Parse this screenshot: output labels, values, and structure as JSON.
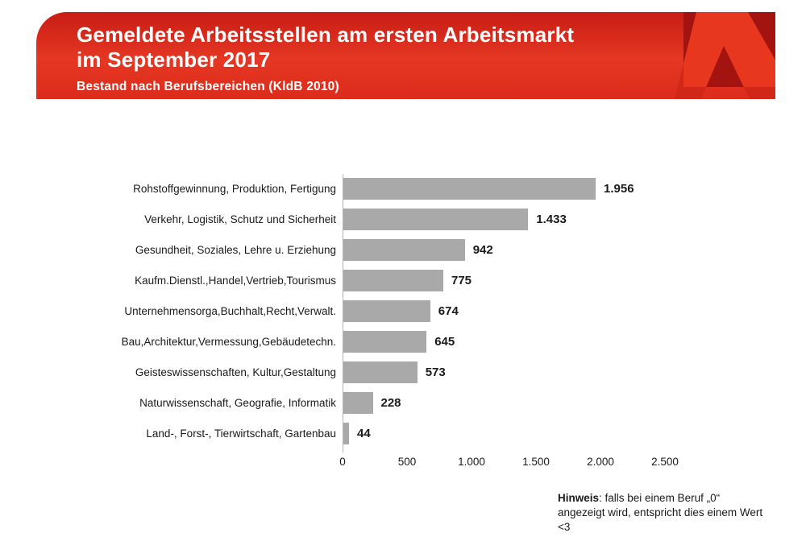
{
  "header": {
    "title_line1": "Gemeldete Arbeitsstellen am ersten Arbeitsmarkt",
    "title_line2": "im September 2017",
    "subtitle": "Bestand nach Berufsbereichen (KldB 2010)",
    "logo": "bundesagentur-fuer-arbeit-a-logo"
  },
  "chart_data": {
    "type": "bar",
    "orientation": "horizontal",
    "title": "Gemeldete Arbeitsstellen am ersten Arbeitsmarkt im September 2017",
    "subtitle": "Bestand nach Berufsbereichen (KldB 2010)",
    "categories": [
      "Rohstoffgewinnung, Produktion, Fertigung",
      "Verkehr, Logistik, Schutz und Sicherheit",
      "Gesundheit, Soziales, Lehre u. Erziehung",
      "Kaufm.Dienstl.,Handel,Vertrieb,Tourismus",
      "Unternehmensorga,Buchhalt,Recht,Verwalt.",
      "Bau,Architektur,Vermessung,Gebäudetechn.",
      "Geisteswissenschaften, Kultur,Gestaltung",
      "Naturwissenschaft, Geografie, Informatik",
      "Land-, Forst-, Tierwirtschaft, Gartenbau"
    ],
    "values": [
      1956,
      1433,
      942,
      775,
      674,
      645,
      573,
      228,
      44
    ],
    "value_labels": [
      "1.956",
      "1.433",
      "942",
      "775",
      "674",
      "645",
      "573",
      "228",
      "44"
    ],
    "x_tick_labels": [
      "0",
      "500",
      "1.000",
      "1.500",
      "2.000",
      "2.500"
    ],
    "x_tick_values": [
      0,
      500,
      1000,
      1500,
      2000,
      2500
    ],
    "xlim": [
      0,
      2500
    ],
    "xlabel": "",
    "ylabel": "",
    "grid": false,
    "legend": false,
    "bar_color": "#a9a9a9"
  },
  "footnote": {
    "label": "Hinweis",
    "text": ": falls bei einem Beruf „0“ angezeigt wird, entspricht dies einem Wert <3"
  },
  "colors": {
    "banner_red": "#e53723",
    "banner_red_dark": "#c81d15",
    "banner_red_deep": "#dc2b1b",
    "logo_square": "#a31411",
    "logo_a": "#e8371f",
    "logo_leg_shadow": "#d02718",
    "bar_gray": "#a9a9a9",
    "text_black": "#1a1a1a",
    "axis_gray": "#b3b3b3"
  }
}
